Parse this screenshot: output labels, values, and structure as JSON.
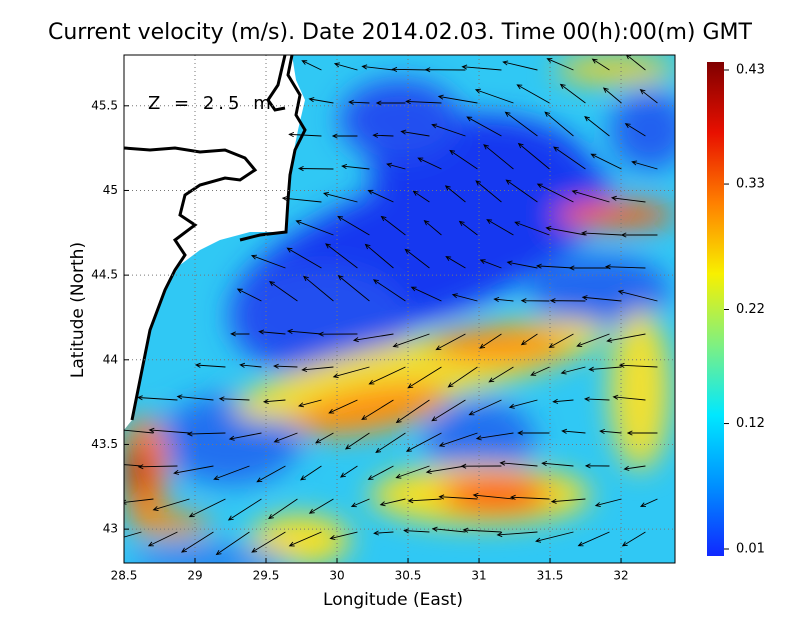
{
  "chart_data": {
    "type": "map",
    "title": "Current velocity (m/s). Date 2014.02.03. Time 00(h):00(m) GMT",
    "annotation": "Z = 2.5 m",
    "xlabel": "Longitude (East)",
    "ylabel": "Latitude (North)",
    "xlim": [
      28.5,
      32.38
    ],
    "ylim": [
      42.8,
      45.8
    ],
    "xticks": [
      28.5,
      29,
      29.5,
      30,
      30.5,
      31,
      31.5,
      32
    ],
    "yticks": [
      43,
      43.5,
      44,
      44.5,
      45,
      45.5
    ],
    "grid": true,
    "colorbar": {
      "lim": [
        0.01,
        0.43
      ],
      "ticks": [
        0.01,
        0.12,
        0.22,
        0.33,
        0.43
      ],
      "colormap": [
        "#1028ff",
        "#0090ff",
        "#00e8ff",
        "#80f080",
        "#f8f000",
        "#ff8000",
        "#e81000",
        "#800000"
      ]
    }
  }
}
